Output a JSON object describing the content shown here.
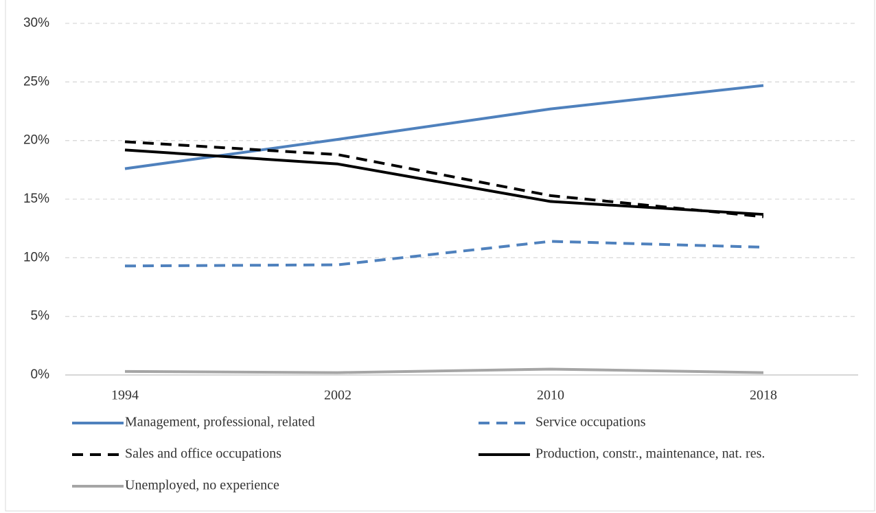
{
  "chart_data": {
    "type": "line",
    "categories": [
      "1994",
      "2002",
      "2010",
      "2018"
    ],
    "series": [
      {
        "name": "Management, professional,  related",
        "color": "#4f81bd",
        "style": "solid",
        "values": [
          17.6,
          20.1,
          22.7,
          24.7
        ]
      },
      {
        "name": "Service occupations",
        "color": "#4f81bd",
        "style": "dashed",
        "values": [
          9.3,
          9.4,
          11.4,
          10.9
        ]
      },
      {
        "name": "Sales and office occupations",
        "color": "#000000",
        "style": "dashed",
        "values": [
          19.9,
          18.8,
          15.3,
          13.5
        ]
      },
      {
        "name": "Production, constr., maintenance, nat. res.",
        "color": "#000000",
        "style": "solid",
        "values": [
          19.2,
          18.0,
          14.8,
          13.7
        ]
      },
      {
        "name": "Unemployed, no experience",
        "color": "#a5a5a5",
        "style": "solid",
        "values": [
          0.3,
          0.2,
          0.5,
          0.2
        ]
      }
    ],
    "ylim": [
      0,
      30
    ],
    "yticks": [
      {
        "value": 0,
        "label": "0%"
      },
      {
        "value": 5,
        "label": "5%"
      },
      {
        "value": 10,
        "label": "10%"
      },
      {
        "value": 15,
        "label": "15%"
      },
      {
        "value": 20,
        "label": "20%"
      },
      {
        "value": 25,
        "label": "25%"
      },
      {
        "value": 30,
        "label": "30%"
      }
    ],
    "grid": true,
    "legend": "bottom"
  }
}
